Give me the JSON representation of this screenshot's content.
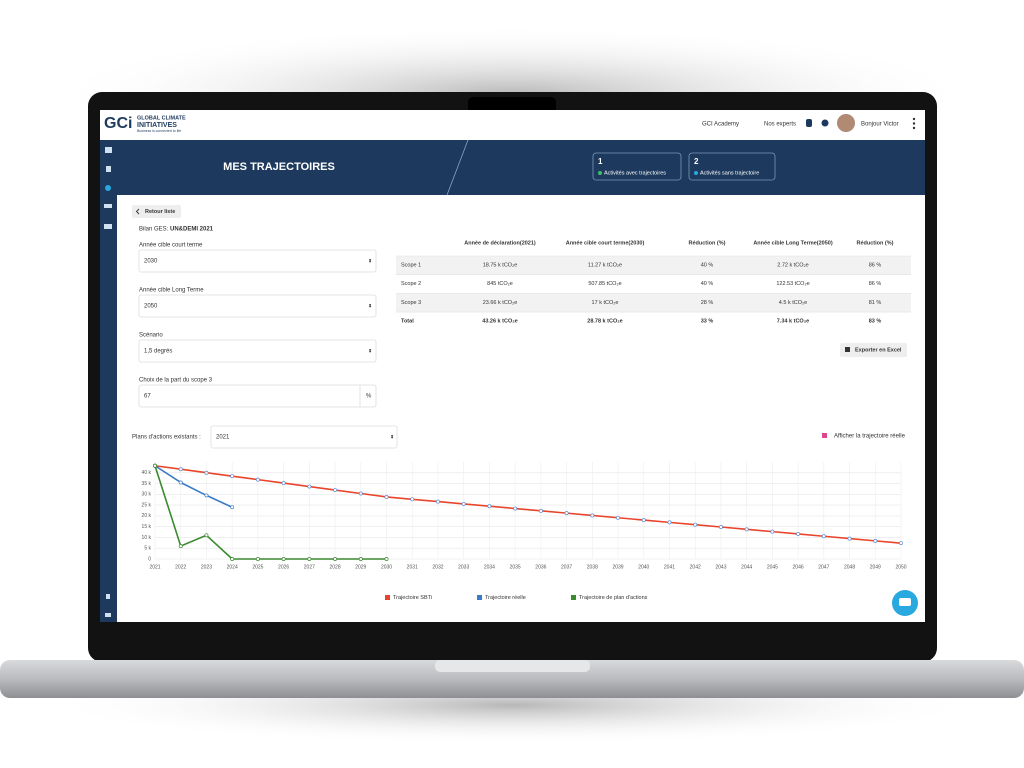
{
  "header": {
    "logo_mark": "GCi",
    "logo_title_1": "GLOBAL CLIMATE",
    "logo_title_2": "INITIATIVES",
    "logo_tagline": "Business is connected to life",
    "nav": [
      "GCI Academy",
      "Nos experts"
    ],
    "greeting": "Bonjour Victor"
  },
  "banner": {
    "title": "MES TRAJECTOIRES",
    "cards": [
      {
        "count": 1,
        "label": "Activités avec trajectoires"
      },
      {
        "count": 2,
        "label": "Activités sans trajectoire"
      }
    ]
  },
  "back_button": "Retour liste",
  "bilan": {
    "label": "Bilan GES:",
    "value": "UN&DEMI 2021"
  },
  "form": [
    {
      "label": "Année cible court terme",
      "value": "2030"
    },
    {
      "label": "Année cible Long Terme",
      "value": "2050"
    },
    {
      "label": "Scénario",
      "value": "1,5 degrés"
    },
    {
      "label": "Choix de la part du scope 3",
      "value": "67",
      "unit": "%"
    }
  ],
  "table": {
    "headers": [
      "Année de déclaration(2021)",
      "Année cible court terme(2030)",
      "Réduction (%)",
      "Année cible Long Terme(2050)",
      "Réduction (%)"
    ],
    "rows": [
      [
        "Scope 1",
        "18.75 k tCO₂e",
        "11.27 k tCO₂e",
        "40 %",
        "2.72 k tCO₂e",
        "86 %"
      ],
      [
        "Scope 2",
        "845 tCO₂e",
        "507.85 tCO₂e",
        "40 %",
        "122.53 tCO₂e",
        "86 %"
      ],
      [
        "Scope 3",
        "23.66 k tCO₂e",
        "17 k tCO₂e",
        "28 %",
        "4.5 k tCO₂e",
        "81 %"
      ],
      [
        "Total",
        "43.26 k tCO₂e",
        "28.78 k tCO₂e",
        "33 %",
        "7.34 k tCO₂e",
        "83 %"
      ]
    ]
  },
  "export_button": "Exporter en Excel",
  "action_plans": {
    "label": "Plans d'actions existants :",
    "value": "2021"
  },
  "real_toggle": "Afficher la trajectoire réelle",
  "chart_data": {
    "type": "line",
    "categories": [
      "2021",
      "2022",
      "2023",
      "2024",
      "2025",
      "2026",
      "2027",
      "2028",
      "2029",
      "2030",
      "2031",
      "2032",
      "2033",
      "2034",
      "2035",
      "2036",
      "2037",
      "2038",
      "2039",
      "2040",
      "2041",
      "2042",
      "2043",
      "2044",
      "2045",
      "2046",
      "2047",
      "2048",
      "2049",
      "2050"
    ],
    "ylim": [
      0,
      45000
    ],
    "yticks": [
      0,
      {
        "value": 5000,
        "label": "5 k"
      },
      {
        "value": 10000,
        "label": "10 k"
      },
      {
        "value": 15000,
        "label": "15 k"
      },
      {
        "value": 20000,
        "label": "20 k"
      },
      {
        "value": 25000,
        "label": "25 k"
      },
      {
        "value": 30000,
        "label": "30 k"
      },
      {
        "value": 35000,
        "label": "35 k"
      },
      {
        "value": 40000,
        "label": "40 k"
      }
    ],
    "grid": true,
    "series": [
      {
        "name": "Trajectoire SBTi",
        "color": "#e8452c",
        "values": [
          43260,
          41650,
          40040,
          38430,
          36820,
          35210,
          33610,
          32000,
          30390,
          28780,
          27710,
          26640,
          25560,
          24490,
          23420,
          22350,
          21280,
          20200,
          19130,
          18060,
          16990,
          15920,
          14840,
          13770,
          12700,
          11630,
          10560,
          9480,
          8410,
          7340
        ]
      },
      {
        "name": "Trajectoire réelle",
        "color": "#3a7bc8",
        "values": [
          43260,
          35500,
          29500,
          24000,
          null,
          null,
          null,
          null,
          null,
          null,
          null,
          null,
          null,
          null,
          null,
          null,
          null,
          null,
          null,
          null,
          null,
          null,
          null,
          null,
          null,
          null,
          null,
          null,
          null,
          null
        ]
      },
      {
        "name": "Trajectoire de plan d'actions",
        "color": "#3a8a2e",
        "values": [
          43260,
          6000,
          11000,
          0,
          0,
          0,
          0,
          0,
          0,
          0,
          null,
          null,
          null,
          null,
          null,
          null,
          null,
          null,
          null,
          null,
          null,
          null,
          null,
          null,
          null,
          null,
          null,
          null,
          null,
          null
        ]
      }
    ]
  }
}
